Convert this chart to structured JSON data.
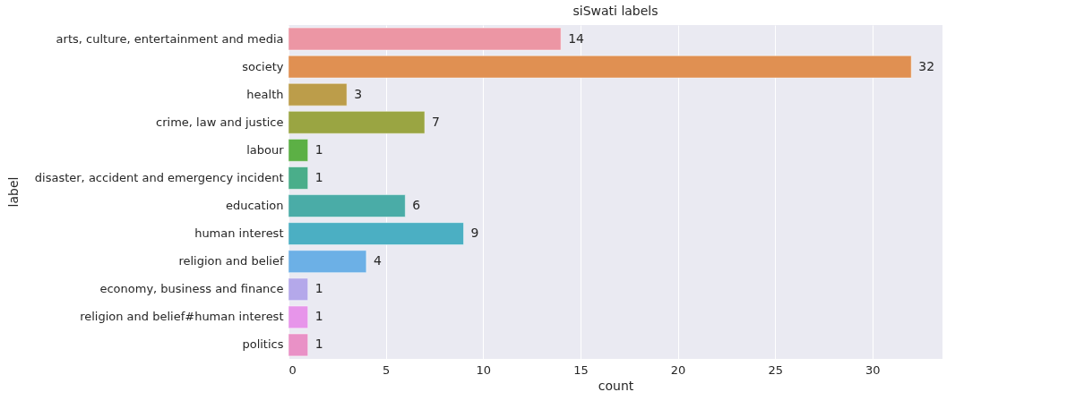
{
  "chart_data": {
    "type": "bar",
    "orientation": "horizontal",
    "title": "siSwati labels",
    "xlabel": "count",
    "ylabel": "label",
    "categories": [
      "arts, culture, entertainment and media",
      "society",
      "health",
      "crime, law and justice",
      "labour",
      "disaster, accident and emergency incident",
      "education",
      "human interest",
      "religion and belief",
      "economy, business and finance",
      "religion and belief#human interest",
      "politics"
    ],
    "values": [
      14,
      32,
      3,
      7,
      1,
      1,
      6,
      9,
      4,
      1,
      1,
      1
    ],
    "colors": [
      "#ec96a4",
      "#e09052",
      "#bc9d4a",
      "#9aa542",
      "#5cb045",
      "#4aae8a",
      "#4aaca7",
      "#4bafc3",
      "#6cb0e6",
      "#b4a8ea",
      "#e795ea",
      "#e991c6"
    ],
    "xlim": [
      0,
      33.6
    ],
    "xticks": [
      0,
      5,
      10,
      15,
      20,
      25,
      30
    ],
    "grid": "x",
    "data_labels": true
  }
}
